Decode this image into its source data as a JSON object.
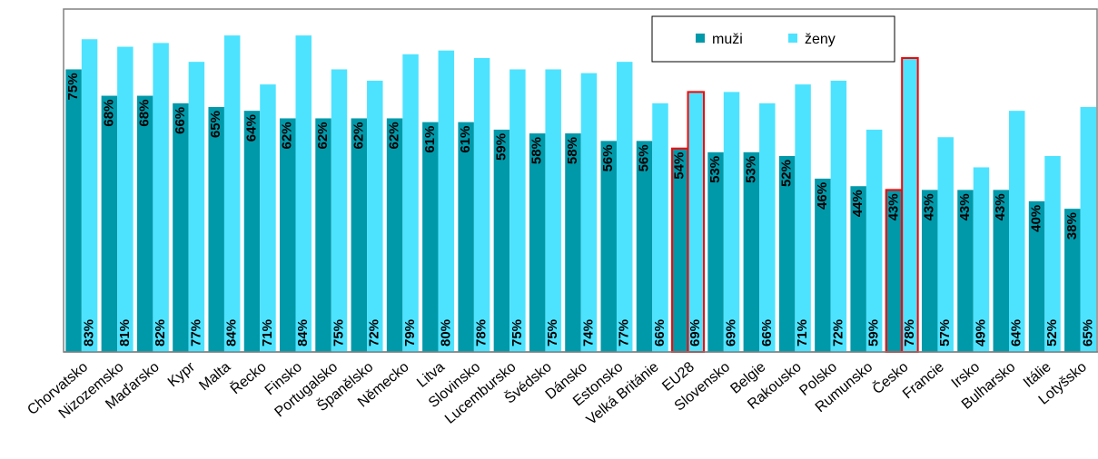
{
  "chart_data": {
    "type": "bar",
    "categories": [
      "Chorvatsko",
      "Nizozemsko",
      "Maďarsko",
      "Kypr",
      "Malta",
      "Řecko",
      "Finsko",
      "Portugalsko",
      "Španělsko",
      "Německo",
      "Litva",
      "Slovinsko",
      "Lucembursko",
      "Švédsko",
      "Dánsko",
      "Estonsko",
      "Velká Británie",
      "EU28",
      "Slovensko",
      "Belgie",
      "Rakousko",
      "Polsko",
      "Rumunsko",
      "Česko",
      "Francie",
      "Irsko",
      "Bulharsko",
      "Itálie",
      "Lotyšsko"
    ],
    "series": [
      {
        "name": "muži",
        "color": "#0099aa",
        "values": [
          75,
          68,
          68,
          66,
          65,
          64,
          62,
          62,
          62,
          62,
          61,
          61,
          59,
          58,
          58,
          56,
          56,
          54,
          53,
          53,
          52,
          46,
          44,
          43,
          43,
          43,
          43,
          40,
          38
        ],
        "value_labels": [
          "75%",
          "68%",
          "68%",
          "66%",
          "65%",
          "64%",
          "62%",
          "62%",
          "62%",
          "62%",
          "61%",
          "61%",
          "59%",
          "58%",
          "58%",
          "56%",
          "56%",
          "54%",
          "53%",
          "53%",
          "52%",
          "46%",
          "44%",
          "43%",
          "43%",
          "43%",
          "43%",
          "40%",
          "38%"
        ]
      },
      {
        "name": "ženy",
        "color": "#4de3ff",
        "values": [
          83,
          81,
          82,
          77,
          84,
          71,
          84,
          75,
          72,
          79,
          80,
          78,
          75,
          75,
          74,
          77,
          66,
          69,
          69,
          66,
          71,
          72,
          59,
          78,
          57,
          49,
          64,
          52,
          65
        ],
        "value_labels": [
          "83%",
          "81%",
          "82%",
          "77%",
          "84%",
          "71%",
          "84%",
          "75%",
          "72%",
          "79%",
          "80%",
          "78%",
          "75%",
          "75%",
          "74%",
          "77%",
          "66%",
          "69%",
          "69%",
          "66%",
          "71%",
          "72%",
          "59%",
          "78%",
          "57%",
          "49%",
          "64%",
          "52%",
          "65%"
        ]
      }
    ],
    "ylim": [
      0,
      91
    ],
    "highlight": [
      17,
      23
    ],
    "highlight_color": "#ff0000"
  }
}
